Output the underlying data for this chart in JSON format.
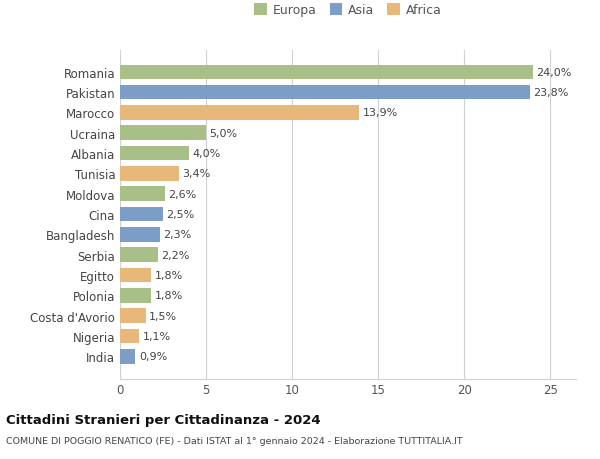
{
  "countries": [
    "Romania",
    "Pakistan",
    "Marocco",
    "Ucraina",
    "Albania",
    "Tunisia",
    "Moldova",
    "Cina",
    "Bangladesh",
    "Serbia",
    "Egitto",
    "Polonia",
    "Costa d'Avorio",
    "Nigeria",
    "India"
  ],
  "values": [
    24.0,
    23.8,
    13.9,
    5.0,
    4.0,
    3.4,
    2.6,
    2.5,
    2.3,
    2.2,
    1.8,
    1.8,
    1.5,
    1.1,
    0.9
  ],
  "labels": [
    "24,0%",
    "23,8%",
    "13,9%",
    "5,0%",
    "4,0%",
    "3,4%",
    "2,6%",
    "2,5%",
    "2,3%",
    "2,2%",
    "1,8%",
    "1,8%",
    "1,5%",
    "1,1%",
    "0,9%"
  ],
  "continents": [
    "Europa",
    "Asia",
    "Africa",
    "Europa",
    "Europa",
    "Africa",
    "Europa",
    "Asia",
    "Asia",
    "Europa",
    "Africa",
    "Europa",
    "Africa",
    "Africa",
    "Asia"
  ],
  "colors": {
    "Europa": "#a8bf88",
    "Asia": "#7b9dc7",
    "Africa": "#e8b87a"
  },
  "legend_labels": [
    "Europa",
    "Asia",
    "Africa"
  ],
  "title": "Cittadini Stranieri per Cittadinanza - 2024",
  "subtitle": "COMUNE DI POGGIO RENATICO (FE) - Dati ISTAT al 1° gennaio 2024 - Elaborazione TUTTITALIA.IT",
  "xlim": [
    0,
    26.5
  ],
  "xticks": [
    0,
    5,
    10,
    15,
    20,
    25
  ],
  "bg_color": "#ffffff",
  "grid_color": "#d0d0d0",
  "bar_height": 0.72
}
